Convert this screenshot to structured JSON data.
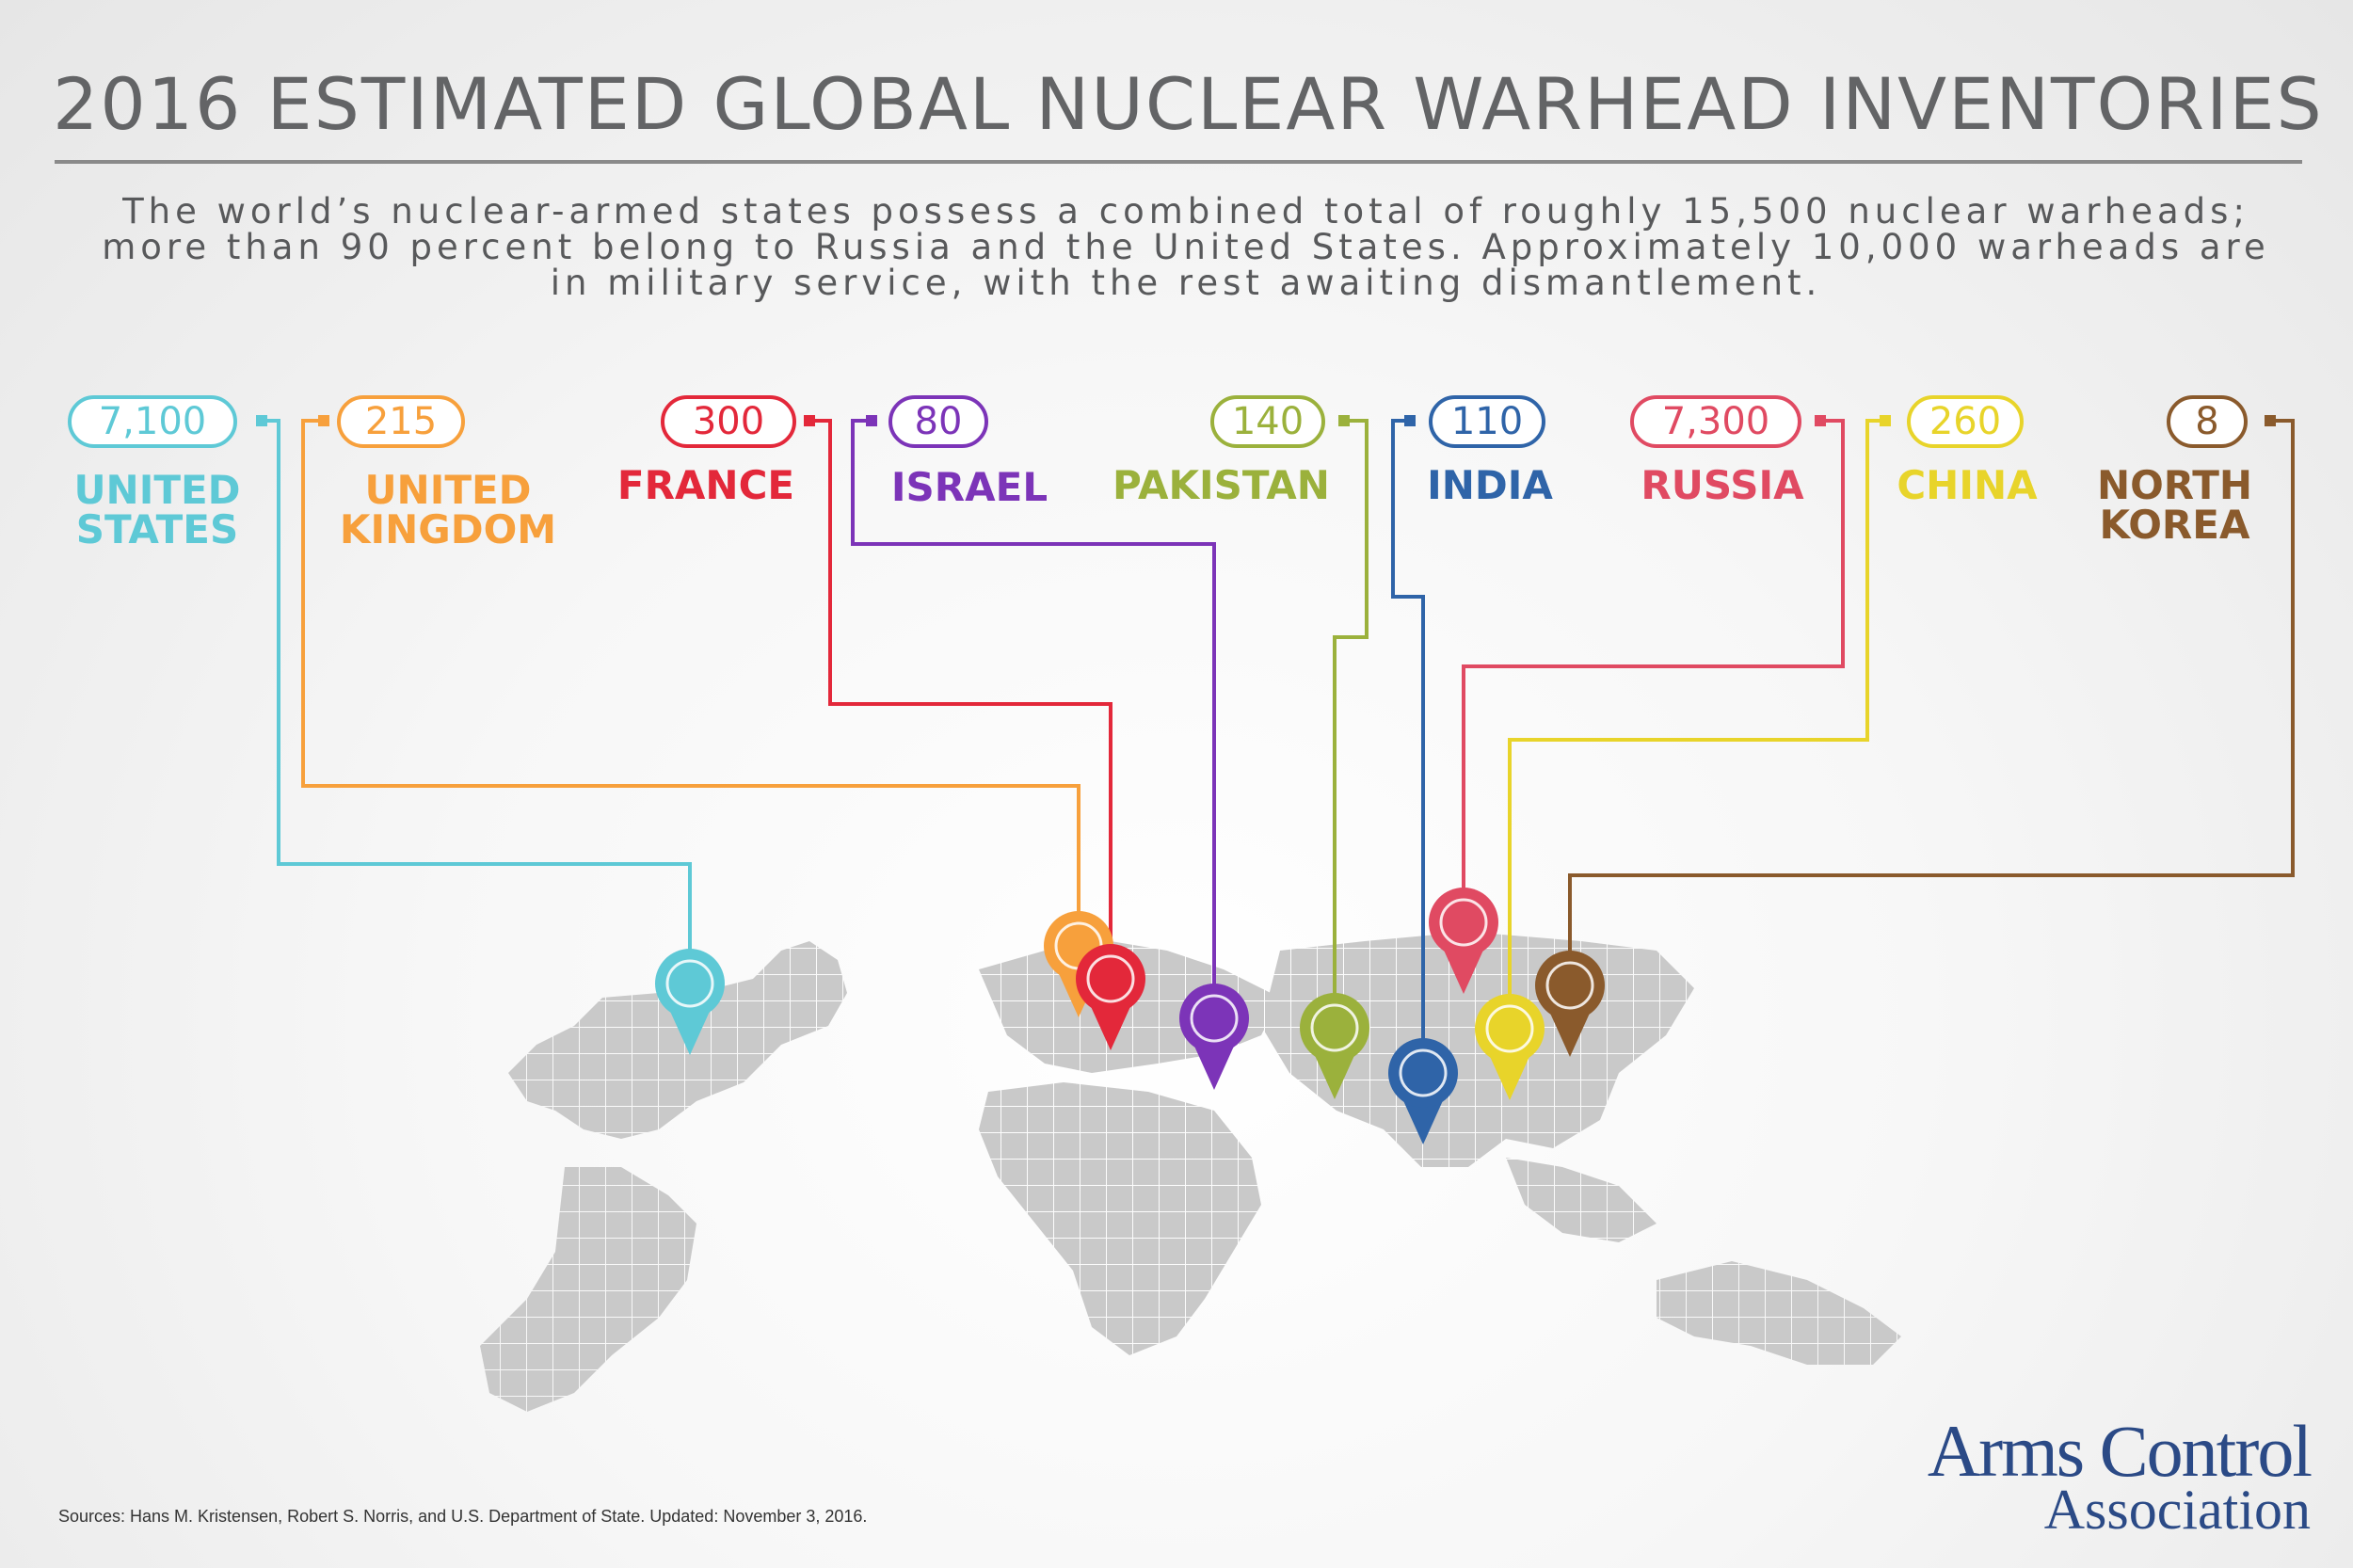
{
  "title": "2016 ESTIMATED GLOBAL NUCLEAR WARHEAD INVENTORIES",
  "subtitle": "The world’s nuclear-armed states possess a combined total of roughly 15,500 nuclear warheads; more than 90 percent belong to Russia and the United States. Approximately 10,000 warheads are in military service, with the rest awaiting dismantlement.",
  "countries": [
    {
      "name": "UNITED\nSTATES",
      "warheads": "7,100",
      "color": "#5ec9d6"
    },
    {
      "name": "UNITED\nKINGDOM",
      "warheads": "215",
      "color": "#f7a03c"
    },
    {
      "name": "FRANCE",
      "warheads": "300",
      "color": "#e3283a"
    },
    {
      "name": "ISRAEL",
      "warheads": "80",
      "color": "#7c34b8"
    },
    {
      "name": "PAKISTAN",
      "warheads": "140",
      "color": "#9bb13c"
    },
    {
      "name": "INDIA",
      "warheads": "110",
      "color": "#2f64a8"
    },
    {
      "name": "RUSSIA",
      "warheads": "7,300",
      "color": "#e04a62"
    },
    {
      "name": "CHINA",
      "warheads": "260",
      "color": "#e8d42a"
    },
    {
      "name": "NORTH\nKOREA",
      "warheads": "8",
      "color": "#8a5a2c"
    }
  ],
  "source": "Sources: Hans M. Kristensen, Robert S. Norris, and U.S. Department of State. Updated: November 3, 2016.",
  "logo": {
    "line1": "Arms Control",
    "line2": "Association"
  }
}
